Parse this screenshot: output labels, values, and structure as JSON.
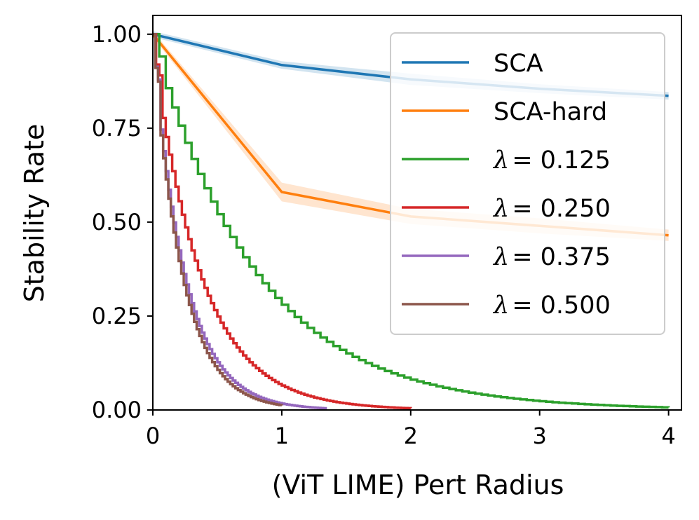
{
  "chart_data": {
    "type": "line",
    "title": "",
    "xlabel": "(ViT LIME) Pert Radius",
    "ylabel": "Stability Rate",
    "xlim": [
      0,
      4.1
    ],
    "ylim": [
      0,
      1.05
    ],
    "xticks": [
      0,
      1,
      2,
      3,
      4
    ],
    "xtick_labels": [
      "0",
      "1",
      "2",
      "3",
      "4"
    ],
    "yticks": [
      0,
      0.25,
      0.5,
      0.75,
      1.0
    ],
    "ytick_labels": [
      "0.00",
      "0.25",
      "0.50",
      "0.75",
      "1.00"
    ],
    "grid": false,
    "legend_position": "top-right",
    "series": [
      {
        "name": "SCA",
        "legend_label": "SCA",
        "color": "#1f77b4",
        "style": "line",
        "x": [
          0,
          1,
          2,
          3,
          4
        ],
        "y": [
          1.0,
          0.918,
          0.88,
          0.855,
          0.836
        ],
        "band": [
          0.008,
          0.01,
          0.015,
          0.012,
          0.01
        ]
      },
      {
        "name": "SCA-hard",
        "legend_label": "SCA-hard",
        "color": "#ff7f0e",
        "style": "line",
        "x": [
          0,
          1,
          2,
          3,
          4
        ],
        "y": [
          1.0,
          0.58,
          0.515,
          0.49,
          0.465
        ],
        "band": [
          0.008,
          0.025,
          0.02,
          0.02,
          0.015
        ]
      },
      {
        "name": "λ = 0.125",
        "legend_label": "= 0.125",
        "color": "#2ca02c",
        "style": "step",
        "x_max": 4.0,
        "step": 0.05,
        "y_at_1": 0.28,
        "y_start": 0.97
      },
      {
        "name": "λ = 0.250",
        "legend_label": "= 0.250",
        "color": "#d62728",
        "style": "step",
        "x_max": 2.0,
        "step": 0.025,
        "y_at_1": 0.065,
        "y_start": 0.95
      },
      {
        "name": "λ = 0.375",
        "legend_label": "= 0.375",
        "color": "#9467bd",
        "style": "step",
        "x_max": 1.35,
        "step": 0.02,
        "y_at_1": 0.017,
        "y_start": 0.95
      },
      {
        "name": "λ = 0.500",
        "legend_label": "= 0.500",
        "color": "#8c564b",
        "style": "step",
        "x_max": 1.0,
        "step": 0.02,
        "y_at_1": 0.012,
        "y_start": 0.95
      }
    ]
  }
}
